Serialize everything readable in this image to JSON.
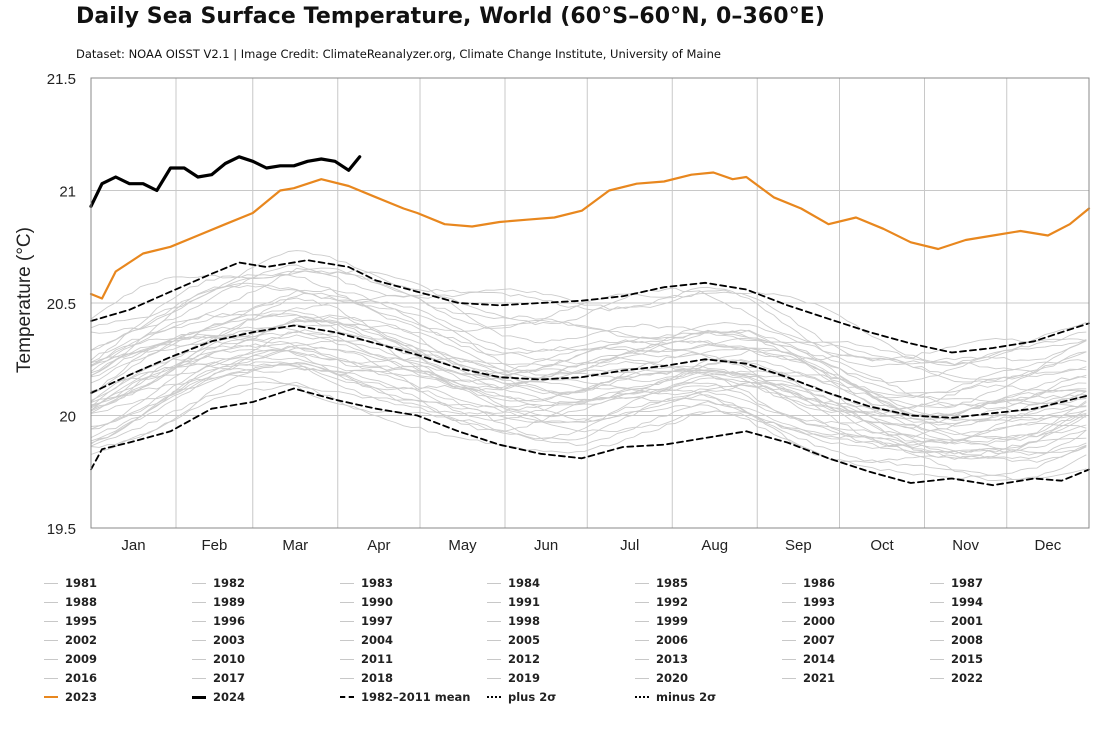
{
  "chart_data": {
    "type": "line",
    "title": "Daily Sea Surface Temperature, World (60°S–60°N, 0–360°E)",
    "subtitle": "Dataset: NOAA OISST V2.1 | Image Credit: ClimateReanalyzer.org, Climate Change Institute, University of Maine",
    "ylabel": "Temperature (°C)",
    "xlabel": "",
    "ylim": [
      19.5,
      21.5
    ],
    "yticks": [
      19.5,
      20,
      20.5,
      21,
      21.5
    ],
    "xlim": [
      1,
      365
    ],
    "months": [
      "Jan",
      "Feb",
      "Mar",
      "Apr",
      "May",
      "Jun",
      "Jul",
      "Aug",
      "Sep",
      "Oct",
      "Nov",
      "Dec"
    ],
    "grid": true,
    "legend_position": "bottom",
    "colors": {
      "year_2023": "#e8871e",
      "year_2024": "#000000",
      "historical": "#cccccc",
      "stats": "#000000",
      "grid": "#c8c8c8"
    },
    "series": [
      {
        "name": "2024",
        "style": "solid-black-thick",
        "x": [
          1,
          5,
          10,
          15,
          20,
          25,
          30,
          35,
          40,
          45,
          50,
          55,
          60,
          65,
          70,
          75,
          80,
          85,
          90,
          95,
          99
        ],
        "y": [
          20.93,
          21.03,
          21.06,
          21.03,
          21.03,
          21.0,
          21.1,
          21.1,
          21.06,
          21.07,
          21.12,
          21.15,
          21.13,
          21.1,
          21.11,
          21.11,
          21.13,
          21.14,
          21.13,
          21.09,
          21.15
        ]
      },
      {
        "name": "2023",
        "style": "solid-orange",
        "x": [
          1,
          5,
          10,
          15,
          20,
          30,
          40,
          50,
          60,
          70,
          75,
          85,
          95,
          105,
          115,
          120,
          130,
          140,
          150,
          160,
          170,
          180,
          190,
          200,
          210,
          220,
          228,
          235,
          240,
          250,
          260,
          270,
          280,
          290,
          300,
          310,
          320,
          330,
          340,
          350,
          358,
          365
        ],
        "y": [
          20.54,
          20.52,
          20.64,
          20.68,
          20.72,
          20.75,
          20.8,
          20.85,
          20.9,
          21.0,
          21.01,
          21.05,
          21.02,
          20.97,
          20.92,
          20.9,
          20.85,
          20.84,
          20.86,
          20.87,
          20.88,
          20.91,
          21.0,
          21.03,
          21.04,
          21.07,
          21.08,
          21.05,
          21.06,
          20.97,
          20.92,
          20.85,
          20.88,
          20.83,
          20.77,
          20.74,
          20.78,
          20.8,
          20.82,
          20.8,
          20.85,
          20.92
        ]
      },
      {
        "name": "1982-2011 mean",
        "style": "dashed-black",
        "x": [
          1,
          15,
          30,
          45,
          60,
          75,
          90,
          105,
          120,
          135,
          150,
          165,
          180,
          195,
          210,
          225,
          240,
          255,
          270,
          285,
          300,
          315,
          330,
          345,
          355,
          365
        ],
        "y": [
          20.1,
          20.18,
          20.26,
          20.33,
          20.37,
          20.4,
          20.37,
          20.32,
          20.27,
          20.21,
          20.17,
          20.16,
          20.17,
          20.2,
          20.22,
          20.25,
          20.23,
          20.17,
          20.1,
          20.04,
          20.0,
          19.99,
          20.01,
          20.03,
          20.06,
          20.09
        ]
      },
      {
        "name": "plus 2σ",
        "style": "dashed-black",
        "x": [
          1,
          15,
          30,
          45,
          55,
          65,
          80,
          95,
          105,
          120,
          135,
          150,
          165,
          180,
          195,
          210,
          225,
          240,
          255,
          270,
          285,
          300,
          315,
          330,
          345,
          355,
          365
        ],
        "y": [
          20.42,
          20.47,
          20.55,
          20.63,
          20.68,
          20.66,
          20.69,
          20.66,
          20.6,
          20.55,
          20.5,
          20.49,
          20.5,
          20.51,
          20.53,
          20.57,
          20.59,
          20.56,
          20.49,
          20.43,
          20.37,
          20.32,
          20.28,
          20.3,
          20.33,
          20.37,
          20.41
        ]
      },
      {
        "name": "minus 2σ",
        "style": "dashed-black",
        "x": [
          1,
          5,
          15,
          30,
          45,
          60,
          75,
          90,
          105,
          120,
          135,
          150,
          165,
          180,
          195,
          210,
          225,
          240,
          255,
          270,
          285,
          300,
          315,
          330,
          345,
          355,
          365
        ],
        "y": [
          19.76,
          19.85,
          19.88,
          19.93,
          20.03,
          20.06,
          20.12,
          20.07,
          20.03,
          20.0,
          19.93,
          19.87,
          19.83,
          19.81,
          19.86,
          19.87,
          19.9,
          19.93,
          19.88,
          19.81,
          19.75,
          19.7,
          19.72,
          19.69,
          19.72,
          19.71,
          19.76
        ]
      }
    ]
  },
  "legend": {
    "items": [
      {
        "label": "1981",
        "kind": "year"
      },
      {
        "label": "1982",
        "kind": "year"
      },
      {
        "label": "1983",
        "kind": "year"
      },
      {
        "label": "1984",
        "kind": "year"
      },
      {
        "label": "1985",
        "kind": "year"
      },
      {
        "label": "1986",
        "kind": "year"
      },
      {
        "label": "1987",
        "kind": "year"
      },
      {
        "label": "1988",
        "kind": "year"
      },
      {
        "label": "1989",
        "kind": "year"
      },
      {
        "label": "1990",
        "kind": "year"
      },
      {
        "label": "1991",
        "kind": "year"
      },
      {
        "label": "1992",
        "kind": "year"
      },
      {
        "label": "1993",
        "kind": "year"
      },
      {
        "label": "1994",
        "kind": "year"
      },
      {
        "label": "1995",
        "kind": "year"
      },
      {
        "label": "1996",
        "kind": "year"
      },
      {
        "label": "1997",
        "kind": "year"
      },
      {
        "label": "1998",
        "kind": "year"
      },
      {
        "label": "1999",
        "kind": "year"
      },
      {
        "label": "2000",
        "kind": "year"
      },
      {
        "label": "2001",
        "kind": "year"
      },
      {
        "label": "2002",
        "kind": "year"
      },
      {
        "label": "2003",
        "kind": "year"
      },
      {
        "label": "2004",
        "kind": "year"
      },
      {
        "label": "2005",
        "kind": "year"
      },
      {
        "label": "2006",
        "kind": "year"
      },
      {
        "label": "2007",
        "kind": "year"
      },
      {
        "label": "2008",
        "kind": "year"
      },
      {
        "label": "2009",
        "kind": "year"
      },
      {
        "label": "2010",
        "kind": "year"
      },
      {
        "label": "2011",
        "kind": "year"
      },
      {
        "label": "2012",
        "kind": "year"
      },
      {
        "label": "2013",
        "kind": "year"
      },
      {
        "label": "2014",
        "kind": "year"
      },
      {
        "label": "2015",
        "kind": "year"
      },
      {
        "label": "2016",
        "kind": "year"
      },
      {
        "label": "2017",
        "kind": "year"
      },
      {
        "label": "2018",
        "kind": "year"
      },
      {
        "label": "2019",
        "kind": "year"
      },
      {
        "label": "2020",
        "kind": "year"
      },
      {
        "label": "2021",
        "kind": "year"
      },
      {
        "label": "2022",
        "kind": "year"
      },
      {
        "label": "2023",
        "kind": "orange"
      },
      {
        "label": "2024",
        "kind": "black"
      },
      {
        "label": "1982–2011 mean",
        "kind": "dashed"
      },
      {
        "label": "plus 2σ",
        "kind": "dashdot"
      },
      {
        "label": "minus 2σ",
        "kind": "dashdot"
      }
    ]
  }
}
